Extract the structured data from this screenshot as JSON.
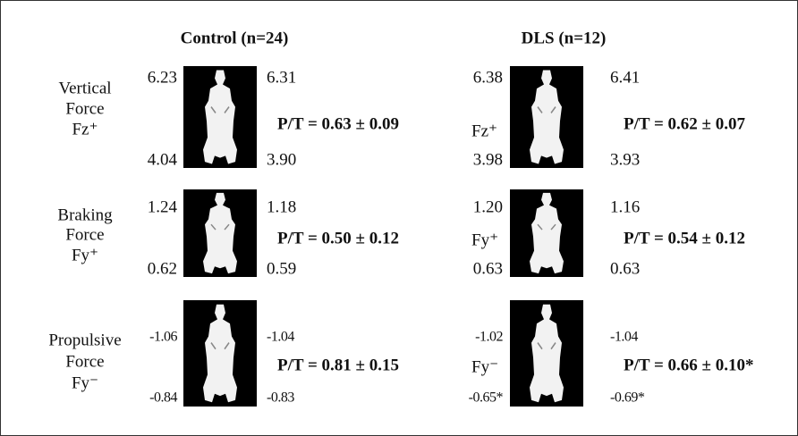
{
  "header": {
    "columns": [
      "Control (n=24)",
      "DLS (n=12)"
    ]
  },
  "rows": [
    {
      "label": [
        "Vertical",
        "Force",
        "Fz⁺"
      ],
      "control": {
        "top_left": "6.23",
        "bottom_left": "4.04",
        "top_right": "6.31",
        "bottom_right": "3.90",
        "ratio": "P/T = 0.63 ± 0.09"
      },
      "dls": {
        "side_label": "Fz⁺",
        "top_left": "6.38",
        "bottom_left": "3.98",
        "top_right": "6.41",
        "bottom_right": "3.93",
        "ratio": "P/T = 0.62 ± 0.07"
      }
    },
    {
      "label": [
        "Braking",
        "Force",
        "Fy⁺"
      ],
      "control": {
        "top_left": "1.24",
        "bottom_left": "0.62",
        "top_right": "1.18",
        "bottom_right": "0.59",
        "ratio": "P/T = 0.50 ± 0.12"
      },
      "dls": {
        "side_label": "Fy⁺",
        "top_left": "1.20",
        "bottom_left": "0.63",
        "top_right": "1.16",
        "bottom_right": "0.63",
        "ratio": "P/T = 0.54 ± 0.12"
      }
    },
    {
      "label": [
        "Propulsive",
        "Force",
        "Fy⁻"
      ],
      "control": {
        "top_left": "-1.06",
        "bottom_left": "-0.84",
        "top_right": "-1.04",
        "bottom_right": "-0.83",
        "ratio": "P/T = 0.81 ± 0.15"
      },
      "dls": {
        "side_label": "Fy⁻",
        "top_left": "-1.02",
        "bottom_left": "-0.65*",
        "top_right": "-1.04",
        "bottom_right": "-0.69*",
        "ratio": "P/T = 0.66 ± 0.10*"
      }
    }
  ]
}
